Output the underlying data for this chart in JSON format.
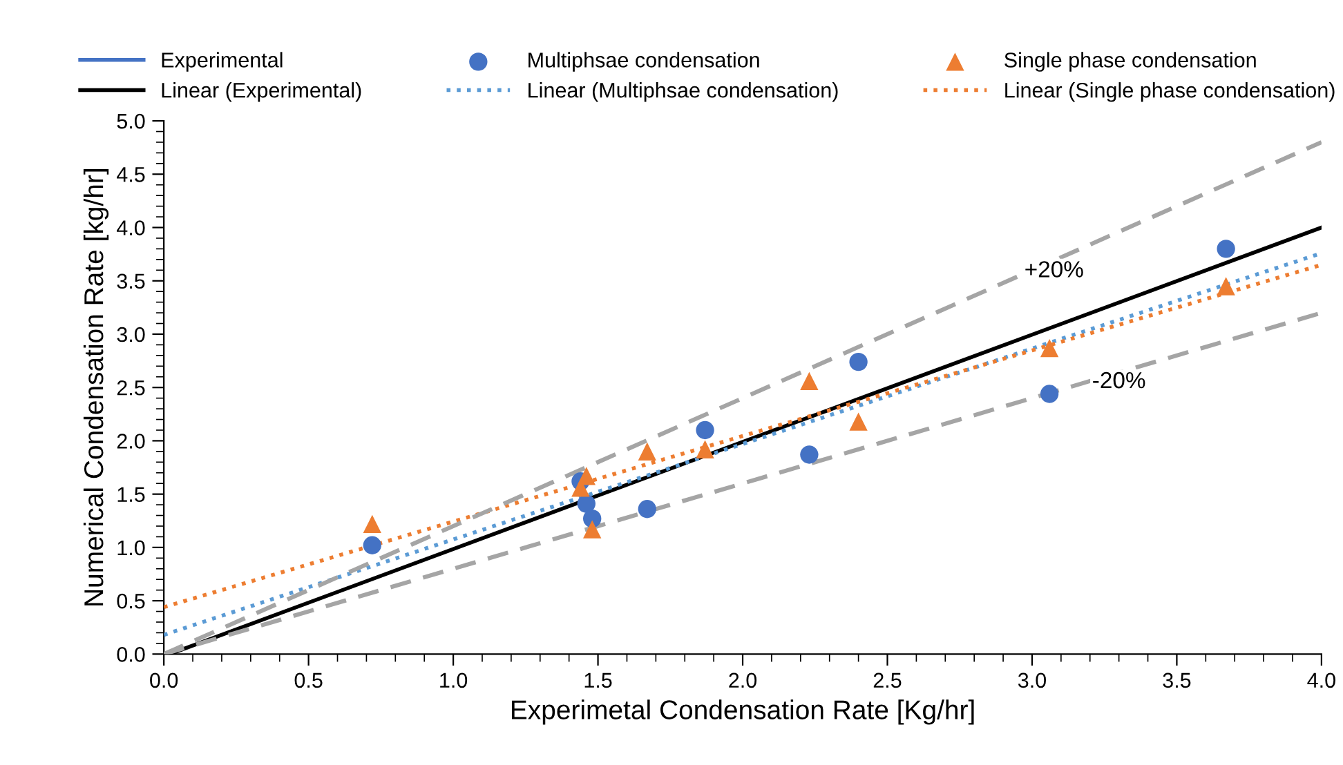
{
  "chart_data": {
    "type": "scatter",
    "xlabel": "Experimetal Condensation Rate [Kg/hr]",
    "ylabel": "Numerical Condensation Rate [kg/hr]",
    "x": [
      0.72,
      1.44,
      1.46,
      1.48,
      1.67,
      1.87,
      2.23,
      2.4,
      3.06,
      3.67
    ],
    "series": [
      {
        "name": "Experimental",
        "type": "line",
        "color": "#4472c4",
        "values": [
          null,
          null,
          null,
          null,
          null,
          null,
          null,
          null,
          null,
          null
        ],
        "marker": "none",
        "line_style": "solid"
      },
      {
        "name": "Multiphsae condensation",
        "color": "#4472c4",
        "marker": "circle",
        "values": [
          1.02,
          1.62,
          1.41,
          1.27,
          1.36,
          2.1,
          1.87,
          2.74,
          2.44,
          3.8
        ]
      },
      {
        "name": "Single phase condensation",
        "color": "#ed7d31",
        "marker": "triangle",
        "values": [
          1.22,
          1.56,
          1.67,
          1.17,
          1.9,
          1.92,
          2.56,
          2.18,
          2.87,
          3.45
        ]
      },
      {
        "name": "Linear (Experimental)",
        "type": "line",
        "color": "#000000",
        "line_style": "solid",
        "marker": "none",
        "x": [
          0.02,
          4.0
        ],
        "values": [
          0.0,
          4.0
        ]
      },
      {
        "name": "Linear (Multiphsae condensation)",
        "type": "line",
        "color": "#5b9bd5",
        "line_style": "dotted",
        "marker": "none",
        "x": [
          0.0,
          4.0
        ],
        "values": [
          0.18,
          3.76
        ]
      },
      {
        "name": "Linear (Single phase condensation)",
        "type": "line",
        "color": "#ed7d31",
        "line_style": "dotted",
        "marker": "none",
        "x": [
          0.0,
          4.0
        ],
        "values": [
          0.44,
          3.65
        ]
      },
      {
        "type": "line",
        "color": "#a5a5a5",
        "line_style": "dashed",
        "marker": "none",
        "x": [
          0.0,
          4.0
        ],
        "values": [
          0.0,
          4.8
        ]
      },
      {
        "type": "line",
        "color": "#a5a5a5",
        "line_style": "dashed",
        "marker": "none",
        "x": [
          0.0,
          4.0
        ],
        "values": [
          0.0,
          3.2
        ]
      }
    ],
    "annotations": [
      "+20%",
      "-20%"
    ],
    "xlim": [
      0,
      4.0
    ],
    "ylim": [
      0,
      5.0
    ],
    "xticks": [
      {
        "value": 0,
        "label": "0.0"
      },
      0.5,
      {
        "value": 1,
        "label": "1.0"
      },
      1.5,
      {
        "value": 2,
        "label": "2.0"
      },
      2.5,
      {
        "value": 3,
        "label": "3.0"
      },
      3.5,
      {
        "value": 4,
        "label": "4.0"
      }
    ],
    "yticks": [
      {
        "value": 0,
        "label": "0.0"
      },
      0.5,
      {
        "value": 1,
        "label": "1.0"
      },
      1.5,
      {
        "value": 2,
        "label": "2.0"
      },
      2.5,
      {
        "value": 3,
        "label": "3.0"
      },
      3.5,
      {
        "value": 4,
        "label": "4.0"
      },
      4.5,
      {
        "value": 5,
        "label": "5.0"
      }
    ],
    "grid": false,
    "legend": "top"
  }
}
